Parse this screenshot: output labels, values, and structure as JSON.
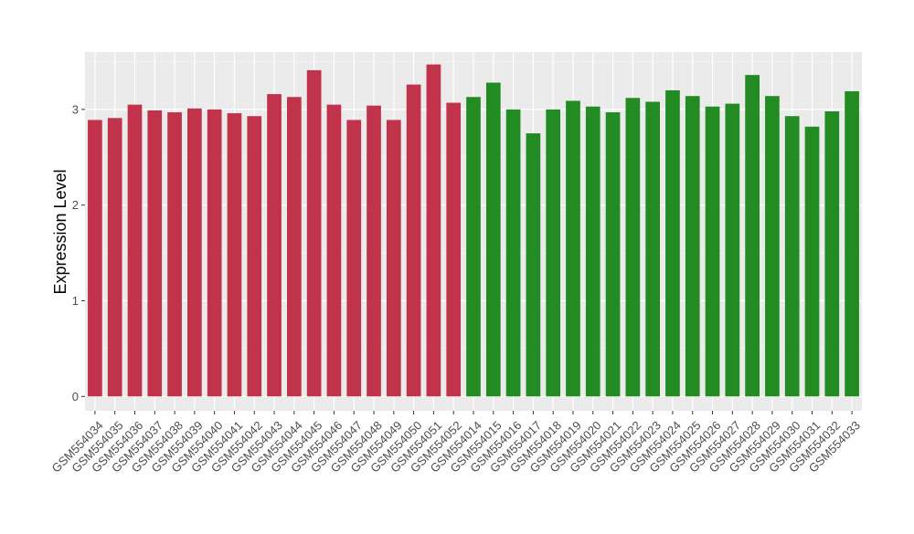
{
  "chart_data": {
    "type": "bar",
    "ylabel": "Expression Level",
    "xlabel": "",
    "ylim": [
      -0.15,
      3.6
    ],
    "yticks": [
      0,
      1,
      2,
      3
    ],
    "grid": true,
    "legend": "none",
    "group_colors": [
      "#c0334a",
      "#228b22"
    ],
    "categories": [
      "GSM554034",
      "GSM554035",
      "GSM554036",
      "GSM554037",
      "GSM554038",
      "GSM554039",
      "GSM554040",
      "GSM554041",
      "GSM554042",
      "GSM554043",
      "GSM554044",
      "GSM554045",
      "GSM554046",
      "GSM554047",
      "GSM554048",
      "GSM554049",
      "GSM554050",
      "GSM554051",
      "GSM554052",
      "GSM554014",
      "GSM554015",
      "GSM554016",
      "GSM554017",
      "GSM554018",
      "GSM554019",
      "GSM554020",
      "GSM554021",
      "GSM554022",
      "GSM554023",
      "GSM554024",
      "GSM554025",
      "GSM554026",
      "GSM554027",
      "GSM554028",
      "GSM554029",
      "GSM554030",
      "GSM554031",
      "GSM554032",
      "GSM554033"
    ],
    "values": [
      2.89,
      2.91,
      3.05,
      2.99,
      2.97,
      3.01,
      3.0,
      2.96,
      2.93,
      3.16,
      3.13,
      3.41,
      3.05,
      2.89,
      3.04,
      2.89,
      3.26,
      3.47,
      3.07,
      3.13,
      3.28,
      3.0,
      2.75,
      3.0,
      3.09,
      3.03,
      2.97,
      3.12,
      3.08,
      3.2,
      3.14,
      3.03,
      3.06,
      3.36,
      3.14,
      2.93,
      2.82,
      2.98,
      3.19
    ],
    "groups": [
      0,
      0,
      0,
      0,
      0,
      0,
      0,
      0,
      0,
      0,
      0,
      0,
      0,
      0,
      0,
      0,
      0,
      0,
      0,
      1,
      1,
      1,
      1,
      1,
      1,
      1,
      1,
      1,
      1,
      1,
      1,
      1,
      1,
      1,
      1,
      1,
      1,
      1,
      1
    ]
  }
}
